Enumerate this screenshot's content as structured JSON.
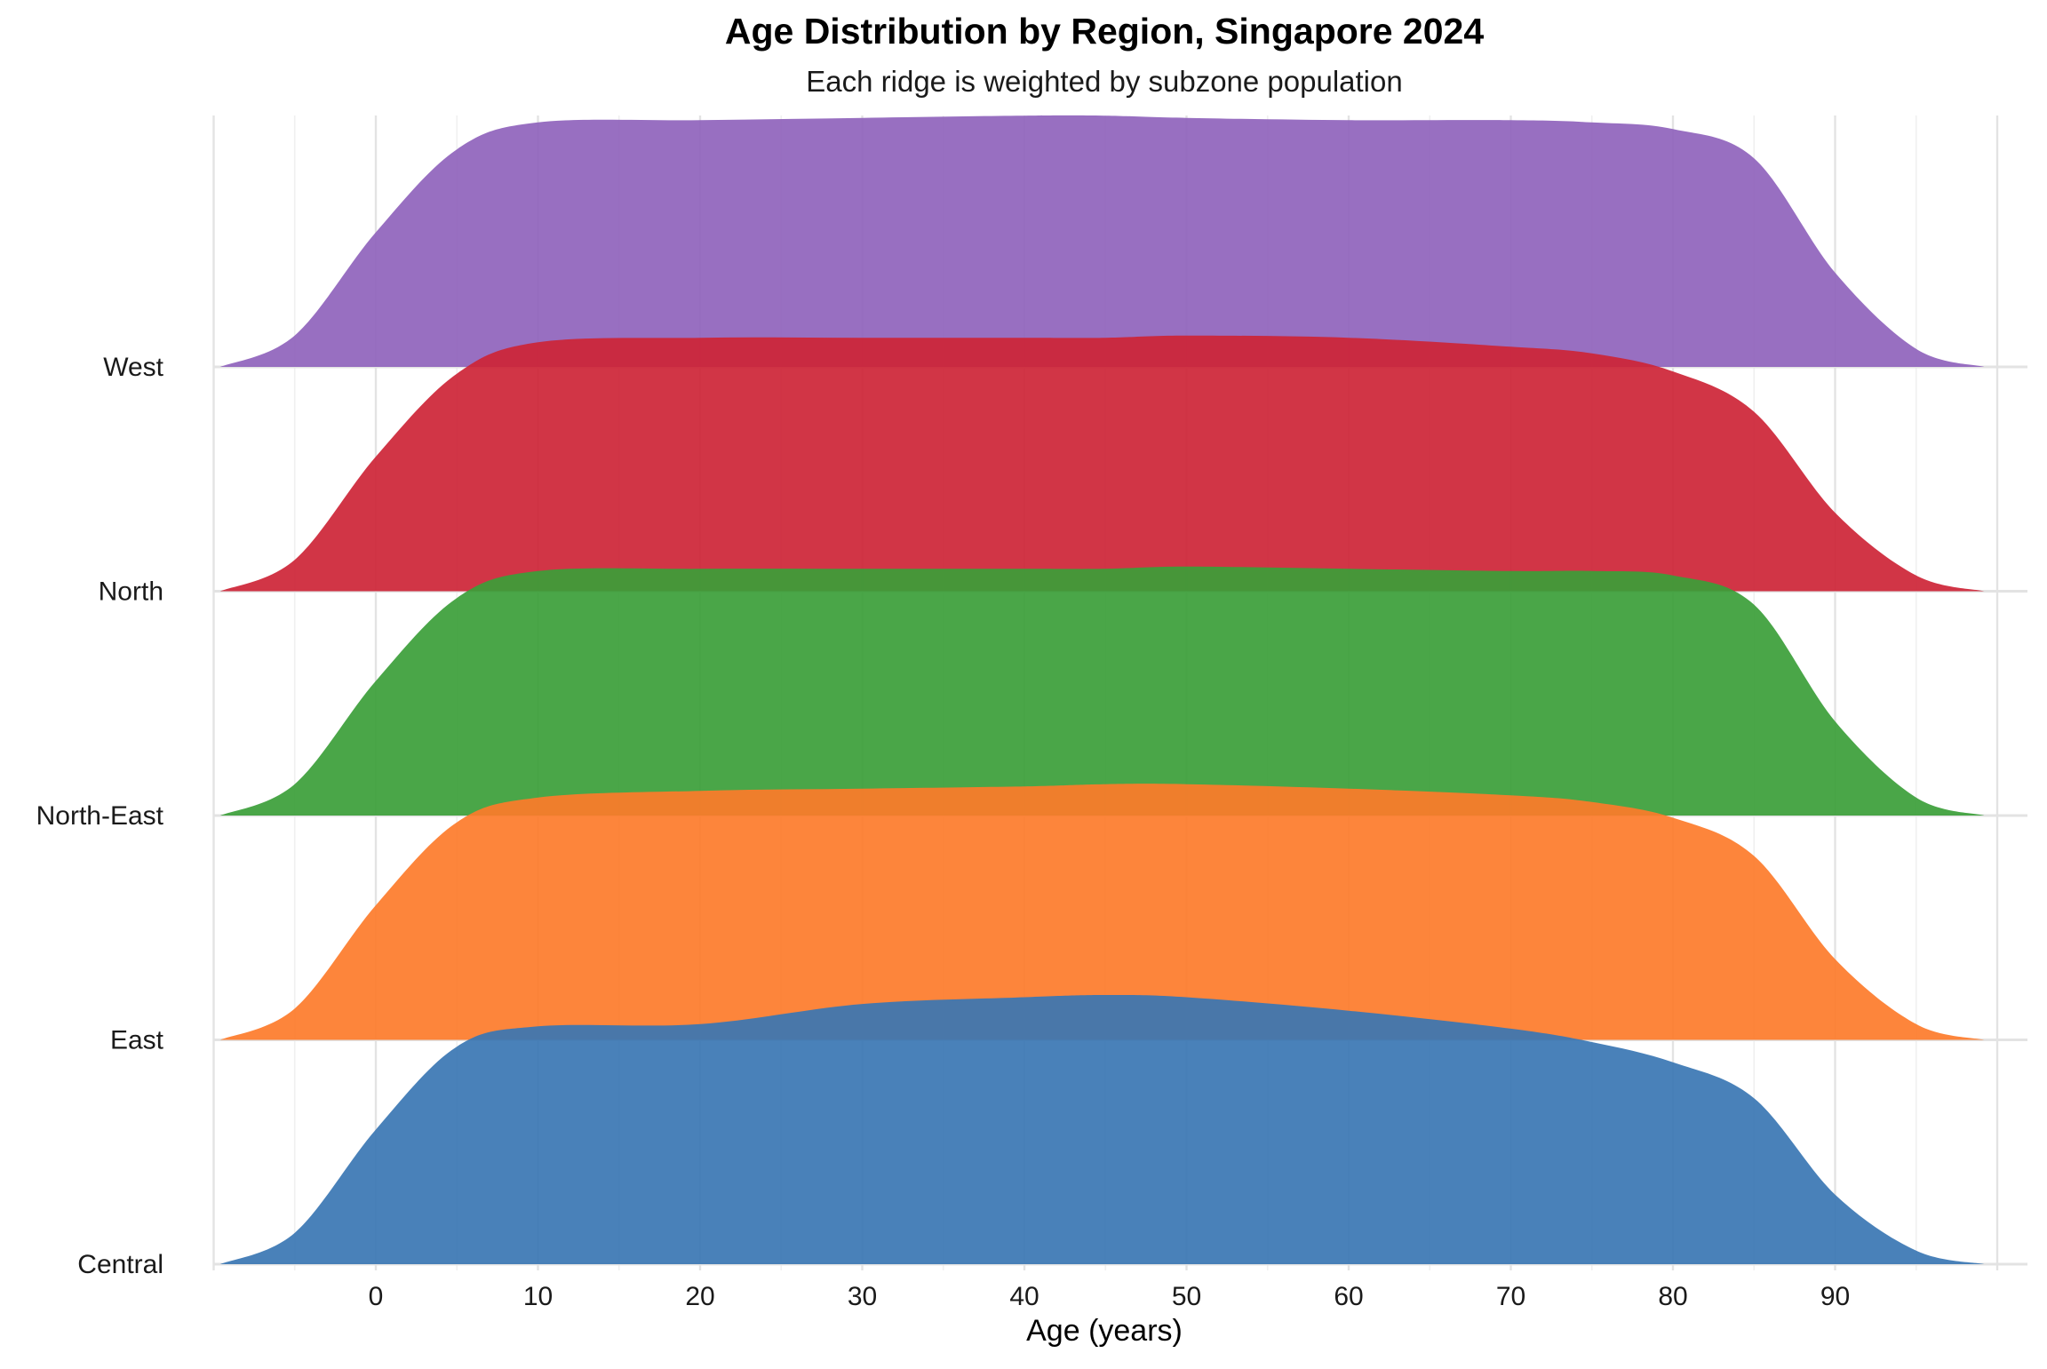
{
  "chart_data": {
    "type": "area",
    "title": "Age Distribution by Region, Singapore 2024",
    "subtitle": "Each ridge is weighted by subzone population",
    "xlabel": "Age (years)",
    "ylabel": "",
    "xlim": [
      -10,
      100
    ],
    "xticks": [
      "0",
      "10",
      "20",
      "30",
      "40",
      "50",
      "60",
      "70",
      "80",
      "90"
    ],
    "grid": true,
    "legend": "none",
    "categories": [
      "Central",
      "East",
      "North-East",
      "North",
      "West"
    ],
    "x": [
      -9.6,
      -5,
      0,
      5,
      10,
      20,
      30,
      40,
      45,
      50,
      60,
      70,
      75,
      80,
      85,
      90,
      95,
      99.2
    ],
    "density_scale": "relative height, 1.0 = one ridge spacing",
    "series": [
      {
        "name": "Central",
        "color": "#3a76b3",
        "values": [
          0.0,
          0.14,
          0.6,
          0.97,
          1.06,
          1.07,
          1.16,
          1.19,
          1.2,
          1.19,
          1.13,
          1.05,
          0.99,
          0.9,
          0.74,
          0.31,
          0.06,
          0.0
        ]
      },
      {
        "name": "East",
        "color": "#fd7b2a",
        "values": [
          0.0,
          0.14,
          0.6,
          0.97,
          1.08,
          1.11,
          1.12,
          1.13,
          1.14,
          1.14,
          1.12,
          1.09,
          1.06,
          0.99,
          0.82,
          0.36,
          0.07,
          0.0
        ]
      },
      {
        "name": "North-East",
        "color": "#3b9e38",
        "values": [
          0.0,
          0.14,
          0.6,
          0.97,
          1.09,
          1.1,
          1.1,
          1.1,
          1.1,
          1.11,
          1.1,
          1.09,
          1.09,
          1.07,
          0.94,
          0.42,
          0.08,
          0.0
        ]
      },
      {
        "name": "North",
        "color": "#cd2436",
        "values": [
          0.0,
          0.14,
          0.6,
          0.97,
          1.11,
          1.13,
          1.13,
          1.13,
          1.13,
          1.14,
          1.13,
          1.09,
          1.06,
          0.98,
          0.8,
          0.35,
          0.07,
          0.0
        ]
      },
      {
        "name": "West",
        "color": "#8f63bc",
        "values": [
          0.0,
          0.14,
          0.6,
          0.97,
          1.09,
          1.1,
          1.11,
          1.12,
          1.12,
          1.11,
          1.1,
          1.1,
          1.09,
          1.06,
          0.93,
          0.42,
          0.08,
          0.0
        ]
      }
    ]
  }
}
